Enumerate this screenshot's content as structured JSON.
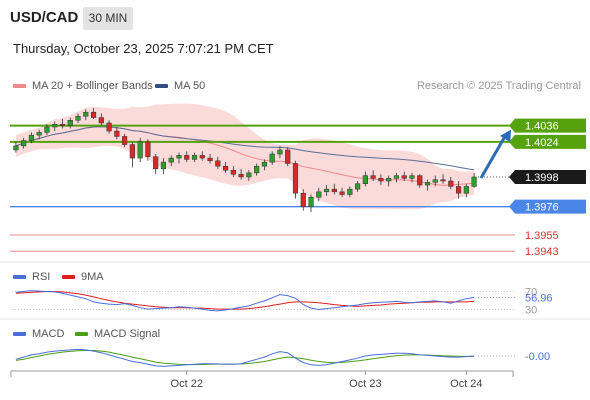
{
  "header": {
    "symbol": "USD/CAD",
    "timeframe": "30 MIN",
    "datetime": "Thursday, October 23, 2025 7:07:21 PM CET"
  },
  "legend": {
    "ma20_bb": "MA 20 + Bollinger Bands",
    "ma50": "MA 50",
    "credit": "Research © 2025 Trading Central"
  },
  "colors": {
    "bollinger_band": "#f9cdcd",
    "ma20": "#f08a8a",
    "ma50": "#5a6f96",
    "candle_up": "#2e9e2e",
    "candle_down": "#d42a2a",
    "resistance": "#55a20e",
    "support": "#4a86e8",
    "minor_level": "#e05a5a",
    "current_price": "#1a1a1a",
    "arrow": "#2a6bb5",
    "rsi": "#4a6fd8",
    "rsi_ma": "#e01e1e",
    "macd": "#4a6fd8",
    "macd_signal": "#4aa014"
  },
  "chart_data": [
    {
      "type": "candlestick",
      "ylim": [
        1.3938,
        1.4055
      ],
      "x_ticks": [
        "Oct 22",
        "Oct 23",
        "Oct 24"
      ],
      "series": [
        {
          "name": "MA 20 + Bollinger Bands"
        },
        {
          "name": "MA 50"
        }
      ],
      "candles": [
        [
          1.4018,
          1.4024,
          1.4016,
          1.4021
        ],
        [
          1.4021,
          1.4027,
          1.4019,
          1.4025
        ],
        [
          1.4025,
          1.4031,
          1.4023,
          1.4029
        ],
        [
          1.4029,
          1.4033,
          1.4026,
          1.4031
        ],
        [
          1.4031,
          1.4037,
          1.4029,
          1.4035
        ],
        [
          1.4035,
          1.4039,
          1.4032,
          1.4037
        ],
        [
          1.4037,
          1.4041,
          1.4034,
          1.4036
        ],
        [
          1.4036,
          1.4042,
          1.4034,
          1.404
        ],
        [
          1.404,
          1.4045,
          1.4038,
          1.4043
        ],
        [
          1.4043,
          1.4048,
          1.404,
          1.4046
        ],
        [
          1.4046,
          1.4049,
          1.4041,
          1.4042
        ],
        [
          1.4042,
          1.4045,
          1.4036,
          1.4038
        ],
        [
          1.4038,
          1.404,
          1.403,
          1.4032
        ],
        [
          1.4032,
          1.4035,
          1.4026,
          1.4028
        ],
        [
          1.4028,
          1.403,
          1.402,
          1.4022
        ],
        [
          1.4022,
          1.4024,
          1.4005,
          1.4012
        ],
        [
          1.4012,
          1.4027,
          1.4009,
          1.4024
        ],
        [
          1.4024,
          1.4026,
          1.401,
          1.4013
        ],
        [
          1.4013,
          1.4015,
          1.4,
          1.4004
        ],
        [
          1.4004,
          1.4012,
          1.4,
          1.4009
        ],
        [
          1.4009,
          1.4014,
          1.4006,
          1.4012
        ],
        [
          1.4012,
          1.4016,
          1.4008,
          1.4014
        ],
        [
          1.4014,
          1.4017,
          1.4009,
          1.4011
        ],
        [
          1.4011,
          1.4016,
          1.4009,
          1.4014
        ],
        [
          1.4014,
          1.4017,
          1.401,
          1.4012
        ],
        [
          1.4012,
          1.4015,
          1.4008,
          1.401
        ],
        [
          1.401,
          1.4013,
          1.4004,
          1.4006
        ],
        [
          1.4006,
          1.4009,
          1.4001,
          1.4003
        ],
        [
          1.4003,
          1.4006,
          1.3998,
          1.4
        ],
        [
          1.4,
          1.4004,
          1.3996,
          1.3998
        ],
        [
          1.3998,
          1.4003,
          1.3995,
          1.4001
        ],
        [
          1.4001,
          1.4008,
          1.3999,
          1.4006
        ],
        [
          1.4006,
          1.4011,
          1.4003,
          1.4009
        ],
        [
          1.4009,
          1.4017,
          1.4007,
          1.4015
        ],
        [
          1.4015,
          1.4021,
          1.4012,
          1.4018
        ],
        [
          1.4018,
          1.402,
          1.4006,
          1.4008
        ],
        [
          1.4008,
          1.401,
          1.3982,
          1.3986
        ],
        [
          1.3986,
          1.3989,
          1.3973,
          1.3976
        ],
        [
          1.3976,
          1.3985,
          1.3972,
          1.3983
        ],
        [
          1.3983,
          1.399,
          1.398,
          1.3987
        ],
        [
          1.3987,
          1.3992,
          1.3984,
          1.3989
        ],
        [
          1.3989,
          1.3993,
          1.3985,
          1.3987
        ],
        [
          1.3987,
          1.399,
          1.3983,
          1.3985
        ],
        [
          1.3985,
          1.3991,
          1.3983,
          1.3989
        ],
        [
          1.3989,
          1.3995,
          1.3987,
          1.3993
        ],
        [
          1.3993,
          1.4002,
          1.3991,
          1.3999
        ],
        [
          1.3999,
          1.4003,
          1.3995,
          1.3997
        ],
        [
          1.3997,
          1.4,
          1.3992,
          1.3995
        ],
        [
          1.3995,
          1.3999,
          1.3991,
          1.3997
        ],
        [
          1.3997,
          1.4001,
          1.3994,
          1.3999
        ],
        [
          1.3999,
          1.4002,
          1.3995,
          1.3997
        ],
        [
          1.3997,
          1.4001,
          1.3994,
          1.3999
        ],
        [
          1.3999,
          1.4,
          1.399,
          1.3992
        ],
        [
          1.3992,
          1.3996,
          1.3988,
          1.3994
        ],
        [
          1.3994,
          1.3999,
          1.3991,
          1.3996
        ],
        [
          1.3996,
          1.4,
          1.3993,
          1.3995
        ],
        [
          1.3995,
          1.3998,
          1.3989,
          1.3991
        ],
        [
          1.3991,
          1.3995,
          1.3982,
          1.3986
        ],
        [
          1.3986,
          1.3993,
          1.3983,
          1.3991
        ],
        [
          1.3991,
          1.4001,
          1.399,
          1.3998
        ]
      ],
      "levels": [
        {
          "value": 1.4036,
          "label": "1.4036",
          "kind": "resistance"
        },
        {
          "value": 1.4024,
          "label": "1.4024",
          "kind": "resistance"
        },
        {
          "value": 1.3998,
          "label": "1.3998",
          "kind": "current"
        },
        {
          "value": 1.3976,
          "label": "1.3976",
          "kind": "support"
        },
        {
          "value": 1.3955,
          "label": "1.3955",
          "kind": "minor"
        },
        {
          "value": 1.3943,
          "label": "1.3943",
          "kind": "minor"
        }
      ],
      "forecast_arrow": {
        "from": 1.3998,
        "to": 1.4036
      }
    },
    {
      "type": "line",
      "indicator": "RSI",
      "series_names": [
        "RSI",
        "9MA"
      ],
      "ylim": [
        20,
        80
      ],
      "reference_ticks": [
        {
          "value": 70,
          "label": "70"
        },
        {
          "value": 30,
          "label": "30"
        }
      ],
      "last_value": "56.96",
      "rsi": [
        68,
        70,
        72,
        71,
        70,
        69,
        66,
        62,
        58,
        54,
        47,
        44,
        42,
        41,
        43,
        39,
        34,
        31,
        32,
        33,
        34,
        36,
        35,
        33,
        31,
        28,
        27,
        29,
        32,
        35,
        38,
        44,
        49,
        56,
        63,
        61,
        55,
        41,
        33,
        30,
        32,
        34,
        36,
        38,
        40,
        43,
        45,
        46,
        47,
        48,
        46,
        45,
        47,
        48,
        49,
        47,
        44,
        49,
        54,
        56.96
      ],
      "rsi_ma": [
        66,
        67,
        68,
        69,
        70,
        70,
        69,
        67,
        65,
        62,
        58,
        54,
        50,
        47,
        44,
        42,
        40,
        38,
        36,
        35,
        34,
        34,
        34,
        33,
        33,
        32,
        31,
        31,
        31,
        31,
        32,
        34,
        36,
        39,
        42,
        45,
        47,
        47,
        46,
        45,
        43,
        41,
        39,
        38,
        37,
        38,
        39,
        40,
        42,
        43,
        44,
        45,
        46,
        46,
        47,
        47,
        47,
        47,
        47,
        48
      ]
    },
    {
      "type": "line",
      "indicator": "MACD",
      "series_names": [
        "MACD",
        "MACD Signal"
      ],
      "last_value": "-0.00",
      "macd": [
        -0.3,
        -0.1,
        0.1,
        0.2,
        0.35,
        0.45,
        0.5,
        0.55,
        0.6,
        0.55,
        0.45,
        0.3,
        0.1,
        -0.1,
        -0.3,
        -0.5,
        -0.6,
        -0.75,
        -0.9,
        -0.95,
        -0.9,
        -0.85,
        -0.8,
        -0.75,
        -0.7,
        -0.7,
        -0.72,
        -0.75,
        -0.75,
        -0.7,
        -0.5,
        -0.3,
        -0.1,
        0.2,
        0.4,
        0.3,
        -0.2,
        -0.6,
        -0.8,
        -0.85,
        -0.8,
        -0.65,
        -0.5,
        -0.35,
        -0.2,
        0.0,
        0.1,
        0.15,
        0.2,
        0.25,
        0.25,
        0.2,
        0.1,
        0.05,
        0.0,
        -0.05,
        -0.1,
        -0.1,
        -0.05,
        0.0
      ],
      "signal": [
        -0.4,
        -0.3,
        -0.15,
        0.0,
        0.15,
        0.25,
        0.35,
        0.42,
        0.48,
        0.5,
        0.5,
        0.45,
        0.35,
        0.2,
        0.05,
        -0.1,
        -0.25,
        -0.4,
        -0.55,
        -0.65,
        -0.7,
        -0.75,
        -0.78,
        -0.78,
        -0.77,
        -0.75,
        -0.74,
        -0.74,
        -0.74,
        -0.73,
        -0.68,
        -0.6,
        -0.5,
        -0.35,
        -0.2,
        -0.1,
        -0.15,
        -0.25,
        -0.38,
        -0.5,
        -0.58,
        -0.6,
        -0.58,
        -0.52,
        -0.45,
        -0.35,
        -0.25,
        -0.15,
        -0.05,
        0.02,
        0.08,
        0.1,
        0.1,
        0.08,
        0.05,
        0.02,
        0.0,
        -0.03,
        -0.04,
        -0.03
      ]
    }
  ],
  "rsi_legend": {
    "rsi": "RSI",
    "ma": "9MA"
  },
  "macd_legend": {
    "macd": "MACD",
    "signal": "MACD Signal"
  }
}
